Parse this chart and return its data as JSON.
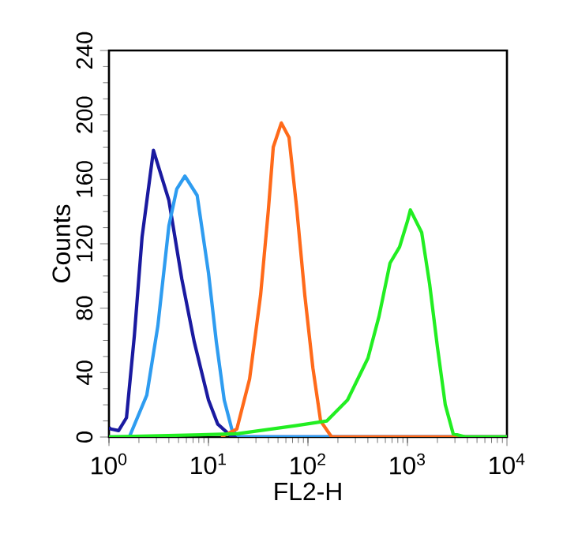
{
  "chart_data": {
    "type": "line",
    "xlabel": "FL2-H",
    "ylabel": "Counts",
    "log": "x",
    "xlim": [
      1,
      10000
    ],
    "ylim": [
      0,
      240
    ],
    "xticks": [
      {
        "value": 1,
        "label": "10$^{0}$"
      },
      {
        "value": 10,
        "label": "10$^{1}$"
      },
      {
        "value": 100,
        "label": "10$^{2}$"
      },
      {
        "value": 1000,
        "label": "10$^{3}$"
      },
      {
        "value": 10000,
        "label": "10$^{4}$"
      }
    ],
    "yticks": [
      0,
      40,
      80,
      120,
      160,
      200,
      240
    ],
    "marker": "none",
    "line_style": "solid",
    "series": [
      {
        "color": "#1a1aa0",
        "x": [
          1,
          1.04,
          1.25,
          1.5,
          1.8,
          2.15,
          2.8,
          4.0,
          5.4,
          7.2,
          10,
          12.4,
          17.3,
          10000
        ],
        "values": [
          6,
          5,
          4,
          12,
          63,
          124,
          178,
          147,
          98,
          59,
          23,
          8,
          0,
          0
        ]
      },
      {
        "color": "#2e9cf0",
        "x": [
          1,
          1.6,
          2.4,
          3.1,
          4.0,
          4.8,
          5.8,
          7.7,
          10,
          12,
          14.4,
          17.3,
          20.8,
          10000
        ],
        "values": [
          0,
          0,
          26,
          69,
          131,
          154,
          162,
          150,
          102,
          59,
          23,
          4,
          0,
          0
        ]
      },
      {
        "color": "#ff6a1a",
        "x": [
          13.4,
          19.3,
          25.9,
          33.4,
          40,
          44.8,
          54,
          64.5,
          77.4,
          93,
          112,
          134,
          173,
          746,
          10000
        ],
        "values": [
          0,
          5,
          36,
          88,
          141,
          180,
          195,
          186,
          141,
          88,
          43,
          10,
          0,
          0,
          0
        ]
      },
      {
        "color": "#22ee22",
        "x": [
          1,
          19.3,
          75,
          155,
          250,
          401,
          518,
          668,
          833,
          1000,
          1070,
          1390,
          1670,
          2000,
          2400,
          2880,
          3870,
          10000
        ],
        "values": [
          0,
          2,
          7,
          10,
          23,
          49,
          75,
          108,
          118,
          134,
          141,
          127,
          95,
          56,
          20,
          2,
          0,
          0
        ]
      }
    ]
  }
}
